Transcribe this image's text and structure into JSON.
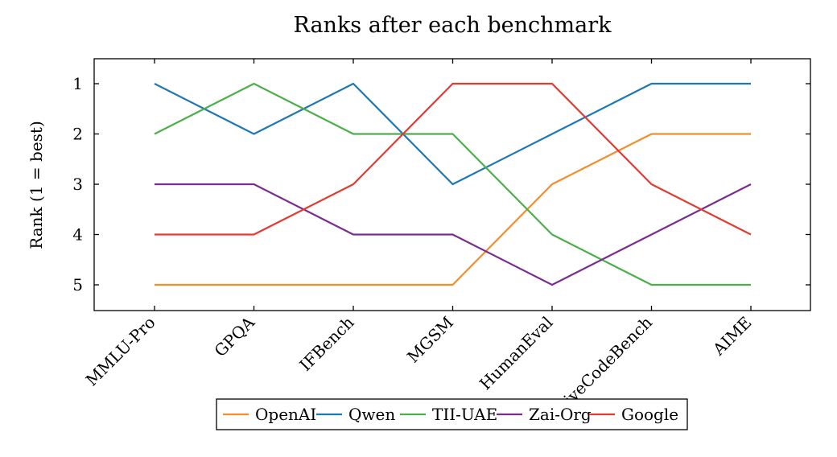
{
  "chart_data": {
    "type": "line",
    "title": "Ranks after each benchmark",
    "xlabel": "",
    "ylabel": "Rank (1 = best)",
    "categories": [
      "MMLU-Pro",
      "GPQA",
      "IFBench",
      "MGSM",
      "HumanEval",
      "LiveCodeBench",
      "AIME"
    ],
    "y_ticks": [
      1,
      2,
      3,
      4,
      5
    ],
    "ylim": [
      5.5,
      0.5
    ],
    "y_reversed": true,
    "grid": false,
    "legend_position": "bottom",
    "series": [
      {
        "name": "OpenAI",
        "color": "#f28e2b",
        "values": [
          5,
          5,
          5,
          5,
          3,
          2,
          2
        ]
      },
      {
        "name": "Qwen",
        "color": "#1f77b4",
        "values": [
          1,
          2,
          1,
          3,
          2,
          1,
          1
        ]
      },
      {
        "name": "TII-UAE",
        "color": "#4daf4a",
        "values": [
          2,
          1,
          2,
          2,
          4,
          5,
          5
        ]
      },
      {
        "name": "Zai-Org",
        "color": "#7b2d8e",
        "values": [
          3,
          3,
          4,
          4,
          5,
          4,
          3
        ]
      },
      {
        "name": "Google",
        "color": "#e03c31",
        "values": [
          4,
          4,
          3,
          1,
          1,
          3,
          4
        ]
      }
    ]
  }
}
